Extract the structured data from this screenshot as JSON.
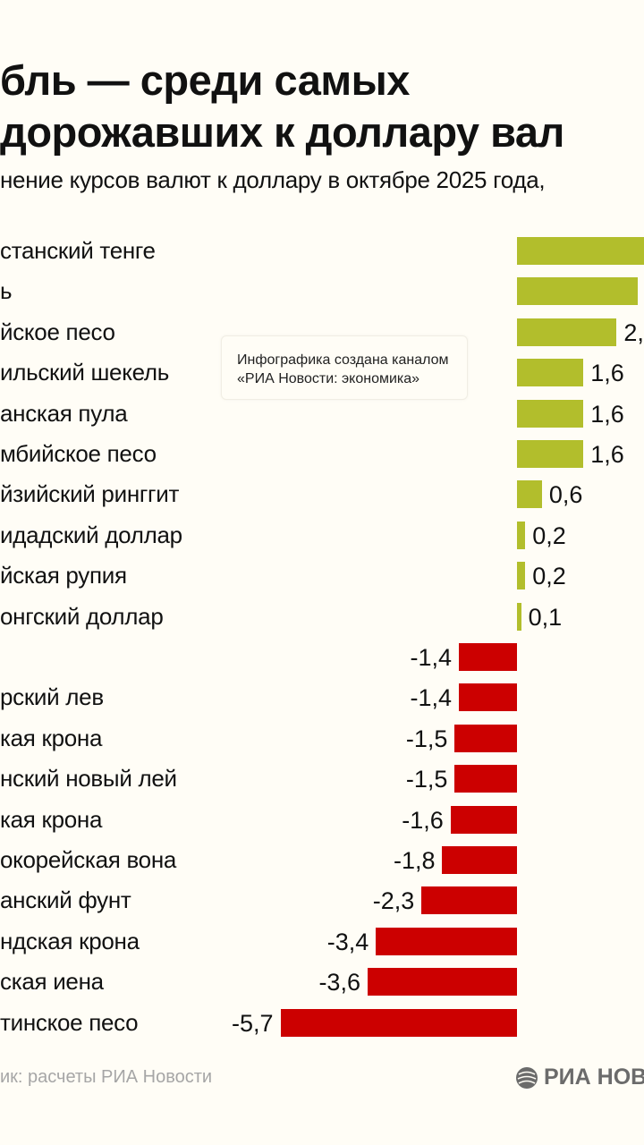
{
  "title_lines": [
    "бль — среди самых",
    "дорожавших к доллару вал"
  ],
  "subtitle": "нение курсов валют к доллару в октябре 2025 года,",
  "note_lines": [
    "Инфографика создана каналом",
    "«РИА Новости: экономика»"
  ],
  "source": "ик: расчеты РИА Новости",
  "logo_text": "РИА НОВ",
  "colors": {
    "positive": "#b2be2c",
    "negative": "#cc0000",
    "background": "#fffdf6"
  },
  "chart_data": {
    "type": "bar",
    "orientation": "horizontal",
    "categories": [
      "станский тенге",
      "ь",
      "йское песо",
      "ильский шекель",
      "анская пула",
      "мбийское песо",
      "йзийский ринггит",
      "идадский доллар",
      "йская рупия",
      "онгский доллар",
      "",
      "рский лев",
      "кая крона",
      "нский новый лей",
      "кая крона",
      "окорейская вона",
      "анский фунт",
      "ндская крона",
      "ская иена",
      "тинское песо"
    ],
    "values": [
      3.3,
      2.9,
      2.4,
      1.6,
      1.6,
      1.6,
      0.6,
      0.2,
      0.2,
      0.1,
      -1.4,
      -1.4,
      -1.5,
      -1.5,
      -1.6,
      -1.8,
      -2.3,
      -3.4,
      -3.6,
      -5.7
    ],
    "data_labels": [
      "",
      "",
      "2,",
      "1,6",
      "1,6",
      "1,6",
      "0,6",
      "0,2",
      "0,2",
      "0,1",
      "-1,4",
      "-1,4",
      "-1,5",
      "-1,5",
      "-1,6",
      "-1,8",
      "-2,3",
      "-3,4",
      "-3,6",
      "-5,7"
    ],
    "unit": "%",
    "grid": false
  }
}
